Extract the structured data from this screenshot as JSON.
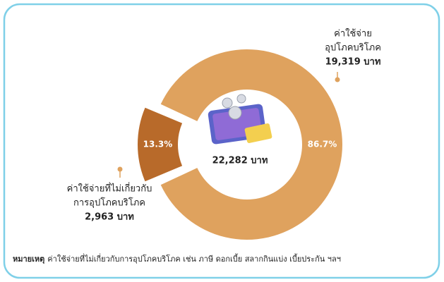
{
  "chart_data": {
    "type": "pie",
    "categories": [
      [
        "ค่าใช้จ่าย",
        "อุปโภคบริโภค"
      ],
      [
        "ค่าใช้จ่ายที่ไม่เกี่ยวกับ",
        "การอุปโภคบริโภค"
      ]
    ],
    "values": [
      86.7,
      13.3
    ],
    "value_labels": [
      "86.7%",
      "13.3%"
    ],
    "colors": [
      "#dfa25e",
      "#b86a2a"
    ],
    "amounts": [
      19319,
      2963
    ],
    "amount_labels": [
      "19,319 บาท",
      "2,963 บาท"
    ],
    "total": 22282,
    "total_label": "22,282 บาท",
    "note_title": "หมายเหตุ",
    "note": "ค่าใช้จ่ายที่ไม่เกี่ยวกับการอุปโภคบริโภค เช่น ภาษี ดอกเบี้ย สลากกินแบ่ง เบี้ยประกัน ฯลฯ"
  }
}
